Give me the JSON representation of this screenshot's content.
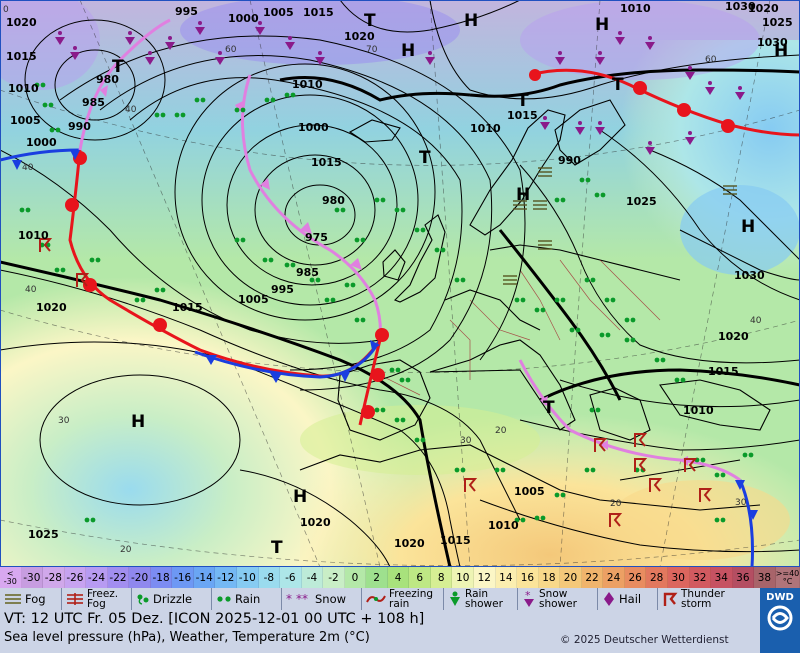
{
  "map": {
    "isobar_labels": [
      {
        "text": "1020"
      },
      {
        "text": "995"
      },
      {
        "text": "1000"
      },
      {
        "text": "1005"
      },
      {
        "text": "1015"
      },
      {
        "text": "1020"
      },
      {
        "text": "1010"
      },
      {
        "text": "1015"
      },
      {
        "text": "1030"
      },
      {
        "text": "1020"
      },
      {
        "text": "1025"
      },
      {
        "text": "1030"
      },
      {
        "text": "1015"
      },
      {
        "text": "980"
      },
      {
        "text": "1010"
      },
      {
        "text": "985"
      },
      {
        "text": "1005"
      },
      {
        "text": "990"
      },
      {
        "text": "1000"
      },
      {
        "text": "1010"
      },
      {
        "text": "1000"
      },
      {
        "text": "1010"
      },
      {
        "text": "990"
      },
      {
        "text": "1015"
      },
      {
        "text": "980"
      },
      {
        "text": "1025"
      },
      {
        "text": "975"
      },
      {
        "text": "985"
      },
      {
        "text": "995"
      },
      {
        "text": "1005"
      },
      {
        "text": "1010"
      },
      {
        "text": "1020"
      },
      {
        "text": "1015"
      },
      {
        "text": "1030"
      },
      {
        "text": "1020"
      },
      {
        "text": "1015"
      },
      {
        "text": "1010"
      },
      {
        "text": "1005"
      },
      {
        "text": "1010"
      },
      {
        "text": "1020"
      },
      {
        "text": "1025"
      },
      {
        "text": "1020"
      },
      {
        "text": "1015"
      }
    ],
    "pressure_centers": [
      {
        "text": "T"
      },
      {
        "text": "H"
      },
      {
        "text": "H"
      },
      {
        "text": "H"
      },
      {
        "text": "T"
      },
      {
        "text": "T"
      },
      {
        "text": "T"
      },
      {
        "text": "T"
      },
      {
        "text": "H"
      },
      {
        "text": "H"
      },
      {
        "text": "H"
      },
      {
        "text": "H"
      },
      {
        "text": "T"
      },
      {
        "text": "H"
      },
      {
        "text": "T"
      }
    ],
    "temperature_labels": [
      {
        "text": "0"
      },
      {
        "text": "30"
      },
      {
        "text": "20"
      },
      {
        "text": "40"
      },
      {
        "text": "40"
      },
      {
        "text": "60"
      },
      {
        "text": "70"
      },
      {
        "text": "40"
      },
      {
        "text": "60"
      },
      {
        "text": "30"
      },
      {
        "text": "20"
      },
      {
        "text": "40"
      },
      {
        "text": "20"
      },
      {
        "text": "30"
      }
    ]
  },
  "scale": {
    "low_end": [
      "<",
      "-30"
    ],
    "high_end": [
      ">=40",
      "°C"
    ],
    "values": [
      "-30",
      "-28",
      "-26",
      "-24",
      "-22",
      "-20",
      "-18",
      "-16",
      "-14",
      "-12",
      "-10",
      "-8",
      "-6",
      "-4",
      "-2",
      "0",
      "2",
      "4",
      "6",
      "8",
      "10",
      "12",
      "14",
      "16",
      "18",
      "20",
      "22",
      "24",
      "26",
      "28",
      "30",
      "32",
      "34",
      "36",
      "38"
    ],
    "colors": [
      "#c79de0",
      "#d0a8ea",
      "#c7a3f0",
      "#b79bf2",
      "#a28ef0",
      "#8f88ee",
      "#7c8cf2",
      "#6d98f4",
      "#6aa6f4",
      "#74b8f4",
      "#86cbf2",
      "#9adbee",
      "#ade6e8",
      "#bdebd8",
      "#c9eec6",
      "#b4e8a8",
      "#9ee08e",
      "#a8e27c",
      "#bee884",
      "#d6ee94",
      "#eef4b4",
      "#fbf6c6",
      "#fbeeb0",
      "#fbe49a",
      "#f8d88a",
      "#f4c87a",
      "#f0b46c",
      "#eca064",
      "#e88c60",
      "#e2785e",
      "#dc665e",
      "#d25a60",
      "#c65262",
      "#b44e62",
      "#a8646a"
    ]
  },
  "legend": [
    {
      "label": "Fog",
      "icon": "fog-icon"
    },
    {
      "label": "Freez. Fog",
      "icon": "freezing-fog-icon"
    },
    {
      "label": "Drizzle",
      "icon": "drizzle-icon"
    },
    {
      "label": "Rain",
      "icon": "rain-icon"
    },
    {
      "label": "Snow",
      "icon": "snow-icon"
    },
    {
      "label": "Freezing rain",
      "icon": "freezing-rain-icon"
    },
    {
      "label": "Rain shower",
      "icon": "rain-shower-icon"
    },
    {
      "label": "Snow shower",
      "icon": "snow-shower-icon"
    },
    {
      "label": "Hail",
      "icon": "hail-icon"
    },
    {
      "label": "Thunder storm",
      "icon": "thunderstorm-icon"
    }
  ],
  "info": {
    "valid_time": "VT: 12 UTC Fr.  05 Dez. [ICON 2025-12-01  00 UTC + 108 h]",
    "subtitle": "Sea level pressure (hPa), Weather, Temperature 2m (°C)",
    "copyright": "© 2025 Deutscher Wetterdienst",
    "logo_text": "DWD"
  },
  "colors": {
    "warm_front": "#e8141c",
    "cold_front": "#1a3ee0",
    "occlusion": "#e080e0",
    "isobar": "#000000",
    "rain_symbol": "#0a9a2a",
    "snow_symbol": "#8a1a8a",
    "thunder_symbol": "#b02018"
  }
}
